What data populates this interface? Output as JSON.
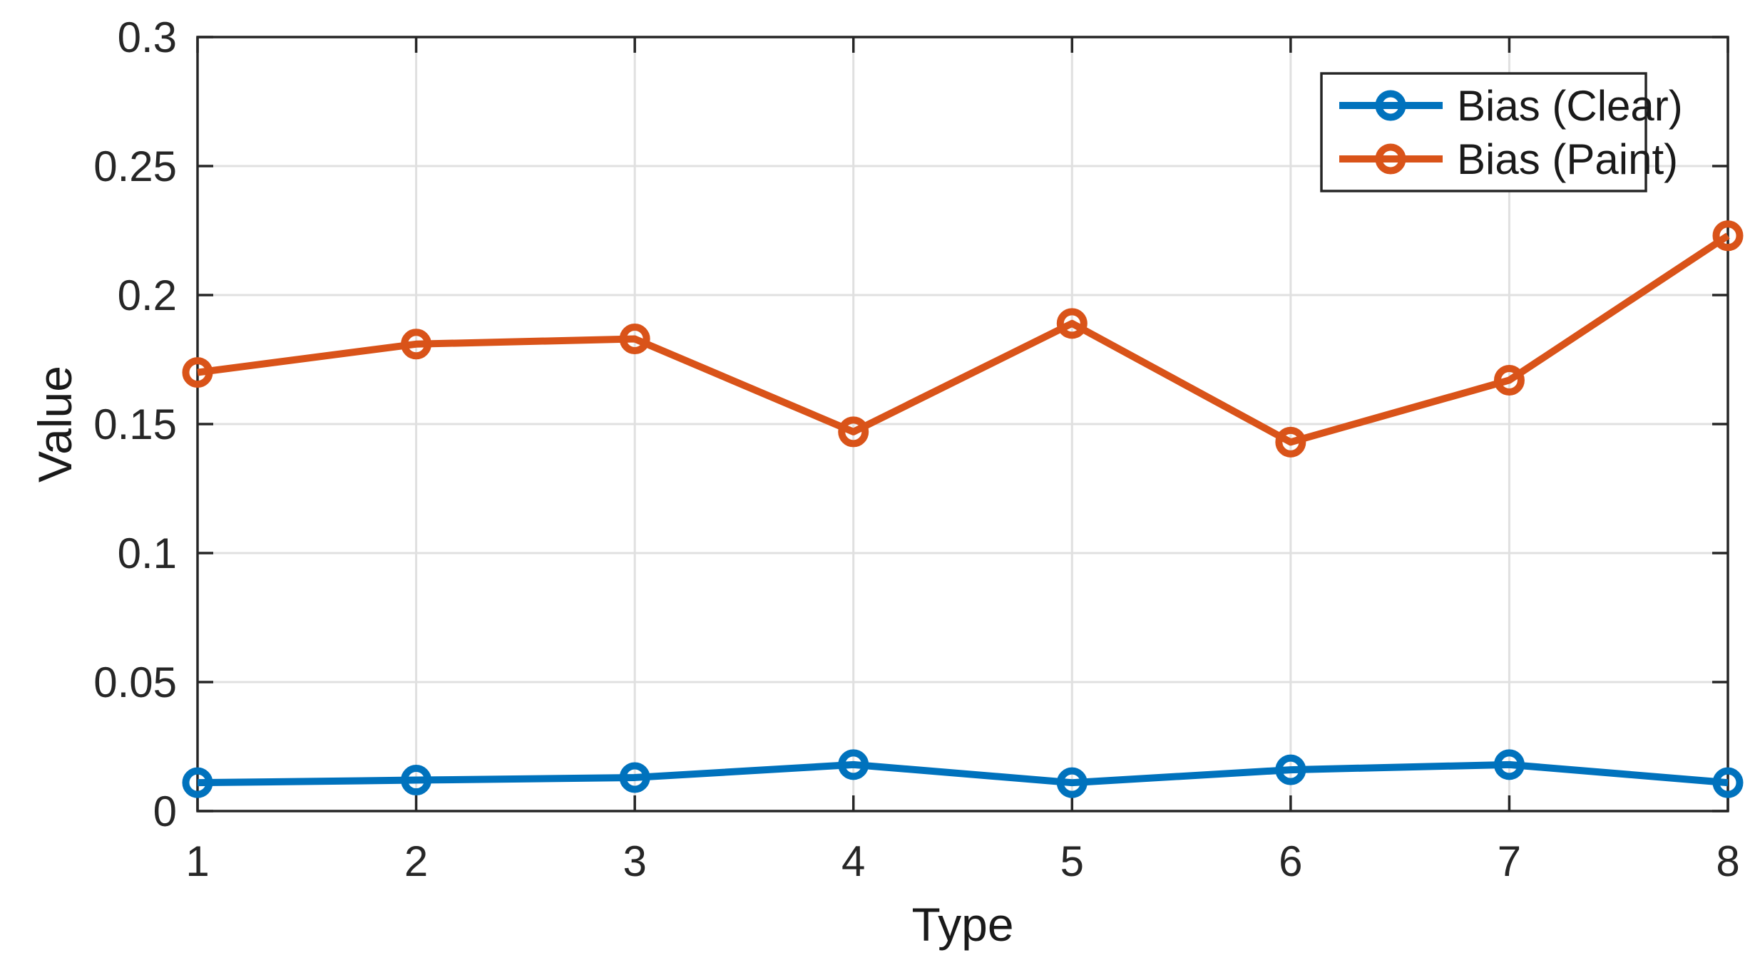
{
  "chart_data": {
    "type": "line",
    "title": "",
    "xlabel": "Type",
    "ylabel": "Value",
    "x": [
      1,
      2,
      3,
      4,
      5,
      6,
      7,
      8
    ],
    "xlim": [
      1,
      8
    ],
    "ylim": [
      0,
      0.3
    ],
    "xticks": [
      1,
      2,
      3,
      4,
      5,
      6,
      7,
      8
    ],
    "xtick_labels": [
      "1",
      "2",
      "3",
      "4",
      "5",
      "6",
      "7",
      "8"
    ],
    "yticks": [
      0,
      0.05,
      0.1,
      0.15,
      0.2,
      0.25,
      0.3
    ],
    "ytick_labels": [
      "0",
      "0.05",
      "0.1",
      "0.15",
      "0.2",
      "0.25",
      "0.3"
    ],
    "grid": true,
    "box": true,
    "legend": {
      "position": "northeast-inside",
      "border": true
    },
    "series": [
      {
        "name": "Bias (Clear)",
        "color": "#0072BD",
        "marker": "circle",
        "values": [
          0.011,
          0.012,
          0.013,
          0.018,
          0.011,
          0.016,
          0.018,
          0.011
        ]
      },
      {
        "name": "Bias (Paint)",
        "color": "#D95319",
        "marker": "circle",
        "values": [
          0.17,
          0.181,
          0.183,
          0.147,
          0.189,
          0.143,
          0.167,
          0.223
        ]
      }
    ],
    "colors": {
      "grid": "#E0E0E0",
      "axis": "#262626",
      "text": "#262626",
      "background": "#FFFFFF"
    }
  }
}
